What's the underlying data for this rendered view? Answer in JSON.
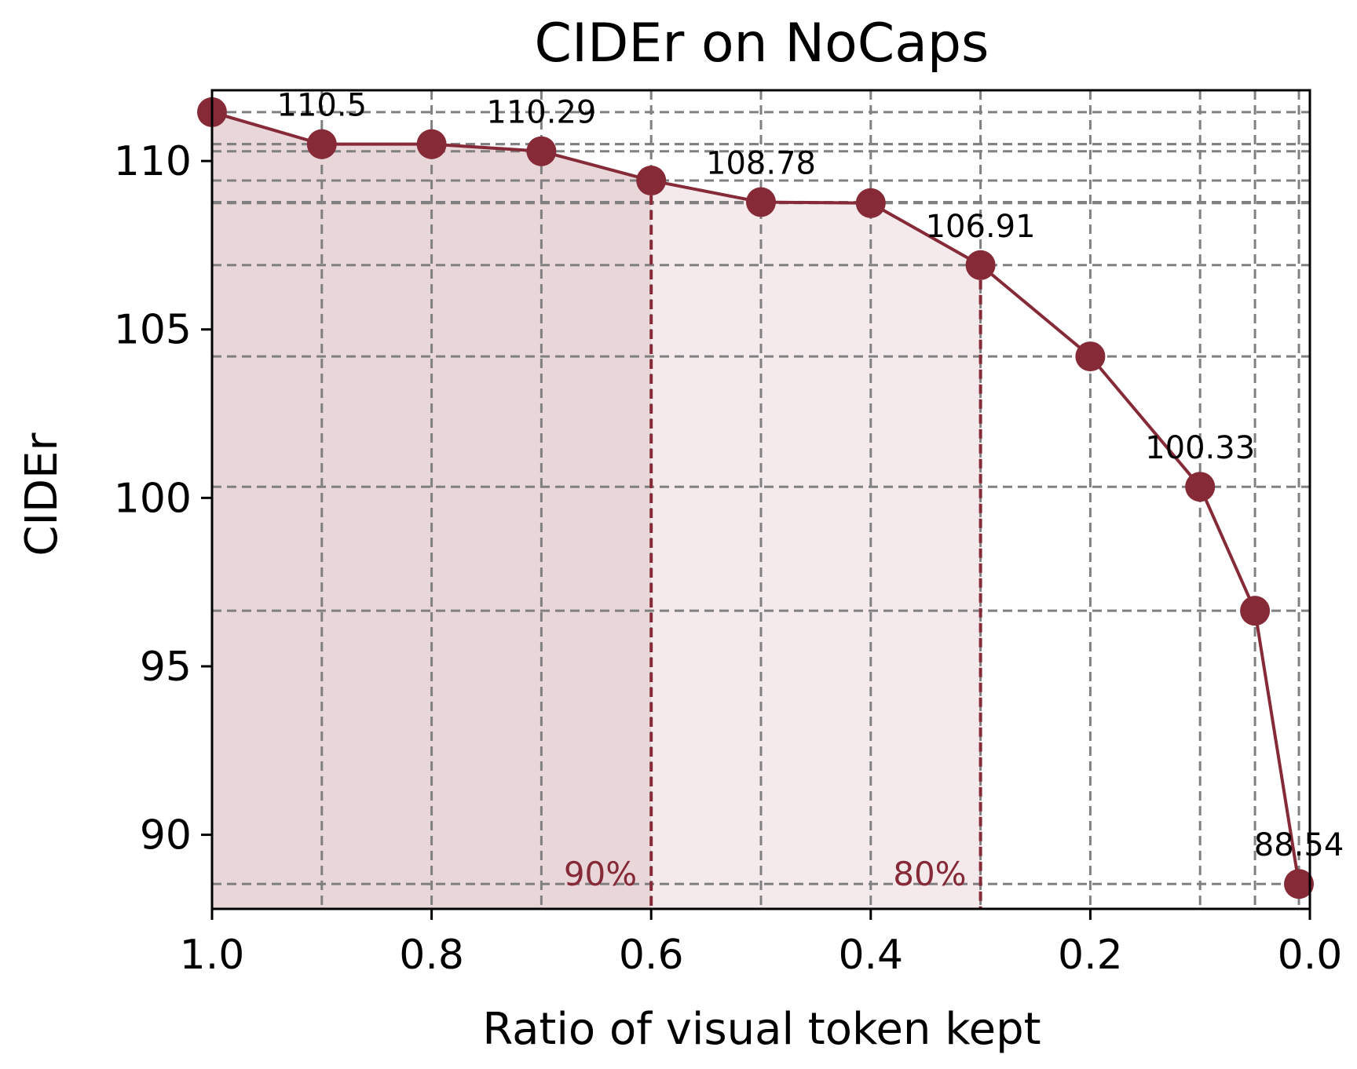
{
  "chart_data": {
    "type": "line",
    "title": "CIDEr on NoCaps",
    "xlabel": "Ratio of visual token kept",
    "ylabel": "CIDEr",
    "xlim": [
      1.0,
      0.0
    ],
    "ylim": [
      87.8,
      112.1
    ],
    "x_reversed": true,
    "grid": true,
    "x_ticks": [
      1.0,
      0.8,
      0.6,
      0.4,
      0.2,
      0.0
    ],
    "x_tick_labels": [
      "1.0",
      "0.8",
      "0.6",
      "0.4",
      "0.2",
      "0.0"
    ],
    "y_ticks": [
      90,
      95,
      100,
      105,
      110
    ],
    "y_tick_labels": [
      "90",
      "95",
      "100",
      "105",
      "110"
    ],
    "series": [
      {
        "x": [
          1.0,
          0.9,
          0.8,
          0.7,
          0.6,
          0.5,
          0.4,
          0.3,
          0.2,
          0.1,
          0.05,
          0.01
        ],
        "y": [
          111.45,
          110.5,
          110.5,
          110.29,
          109.42,
          108.78,
          108.75,
          106.91,
          104.2,
          100.33,
          96.65,
          88.54
        ]
      }
    ],
    "data_labels": [
      {
        "x": 0.9,
        "y": 110.5,
        "text": "110.5"
      },
      {
        "x": 0.7,
        "y": 110.29,
        "text": "110.29"
      },
      {
        "x": 0.5,
        "y": 108.78,
        "text": "108.78"
      },
      {
        "x": 0.3,
        "y": 106.91,
        "text": "106.91"
      },
      {
        "x": 0.1,
        "y": 100.33,
        "text": "100.33"
      },
      {
        "x": 0.01,
        "y": 88.54,
        "text": "88.54"
      }
    ],
    "thresholds": [
      {
        "label": "90%",
        "x": 0.6
      },
      {
        "label": "80%",
        "x": 0.3
      }
    ],
    "colors": {
      "line": "#862a38",
      "grid": "#808080",
      "fill_dark": "#e8d6d9",
      "fill_light": "#f4e9eb"
    }
  }
}
